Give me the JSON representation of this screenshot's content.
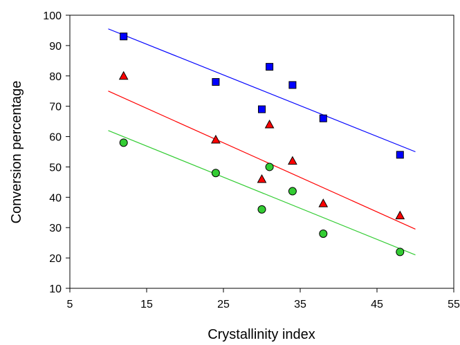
{
  "chart_data": {
    "type": "scatter",
    "title": "",
    "xlabel": "Crystallinity index",
    "ylabel": "Conversion percentage",
    "xlim": [
      5,
      55
    ],
    "ylim": [
      10,
      100
    ],
    "xticks": [
      5,
      15,
      25,
      35,
      45,
      55
    ],
    "yticks": [
      10,
      20,
      30,
      40,
      50,
      60,
      70,
      80,
      90,
      100
    ],
    "grid": false,
    "legend": "none",
    "series": [
      {
        "marker": "square",
        "color": "#0000ff",
        "x": [
          12,
          24,
          30,
          31,
          34,
          38,
          48
        ],
        "y": [
          93,
          78,
          69,
          83,
          77,
          66,
          54
        ],
        "trendline": {
          "x": [
            10,
            50
          ],
          "y": [
            95.5,
            55
          ]
        }
      },
      {
        "marker": "triangle",
        "color": "#ff0000",
        "x": [
          12,
          24,
          30,
          31,
          34,
          38,
          48
        ],
        "y": [
          80,
          59,
          46,
          64,
          52,
          38,
          34
        ],
        "trendline": {
          "x": [
            10,
            50
          ],
          "y": [
            75,
            29.5
          ]
        }
      },
      {
        "marker": "circle",
        "color": "#33cc33",
        "x": [
          12,
          24,
          30,
          31,
          34,
          38,
          48
        ],
        "y": [
          58,
          48,
          36,
          50,
          42,
          28,
          22
        ],
        "trendline": {
          "x": [
            10,
            50
          ],
          "y": [
            62,
            21
          ]
        }
      }
    ]
  }
}
